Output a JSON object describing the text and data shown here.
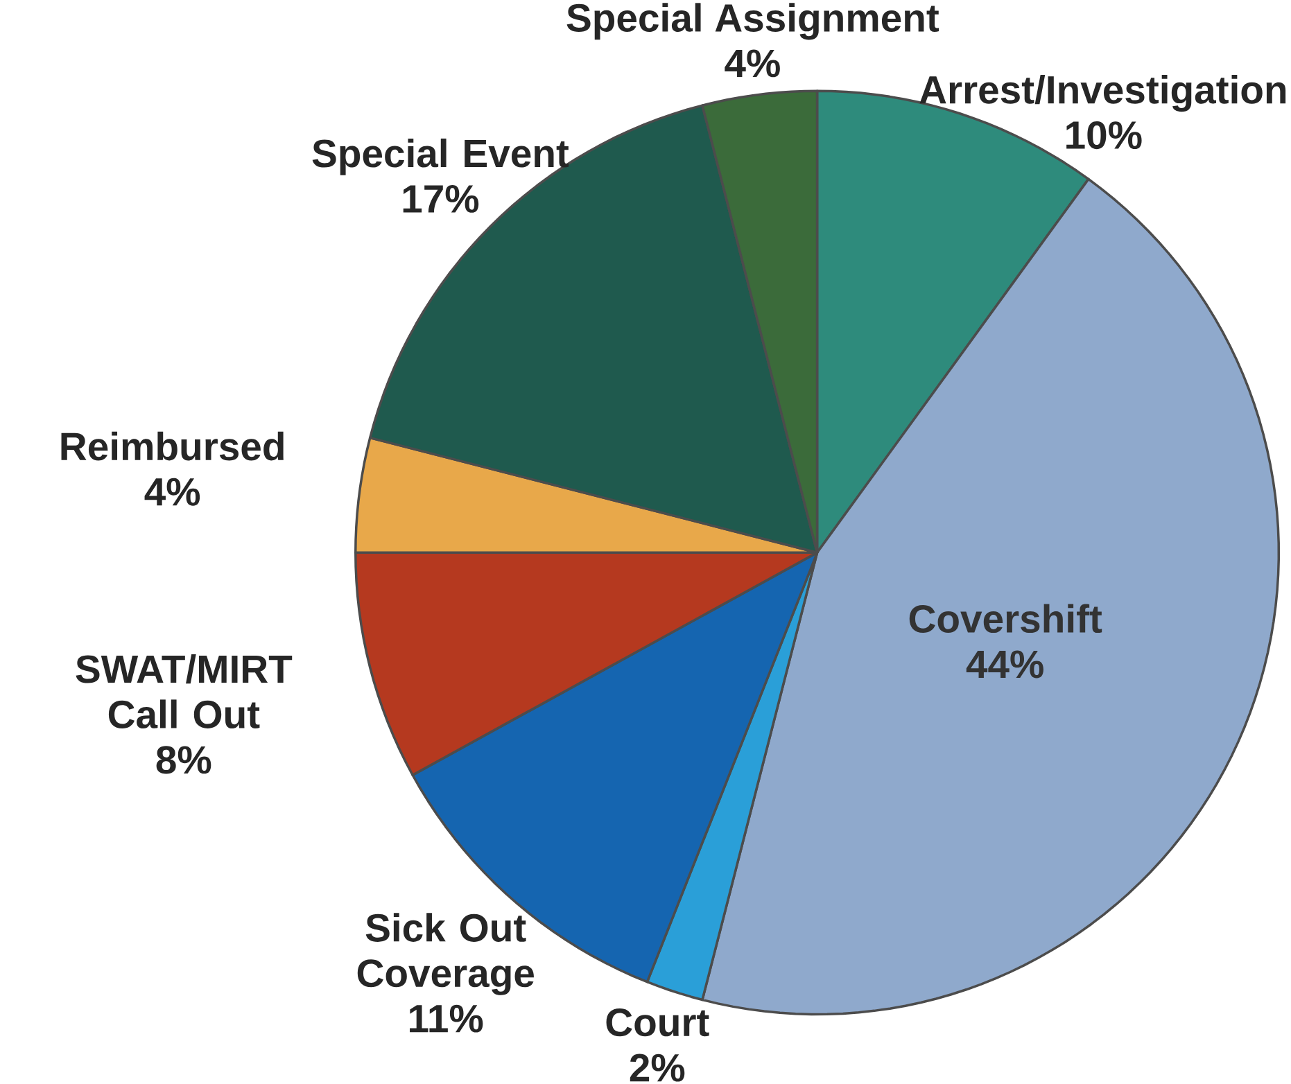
{
  "chart_data": {
    "type": "pie",
    "categories": [
      "Arrest/Investigation",
      "Covershift",
      "Court",
      "Sick Out Coverage",
      "SWAT/MIRT Call Out",
      "Reimbursed",
      "Special Event",
      "Special Assignment"
    ],
    "values": [
      10,
      44,
      2,
      11,
      8,
      4,
      17,
      4
    ],
    "value_labels": [
      "10%",
      "44%",
      "2%",
      "11%",
      "8%",
      "4%",
      "17%",
      "4%"
    ],
    "colors": [
      "#2e8b7c",
      "#8fa9cc",
      "#2a9fd8",
      "#1565b0",
      "#b5391f",
      "#e8a84a",
      "#1f5a4e",
      "#3b6b3a"
    ]
  }
}
